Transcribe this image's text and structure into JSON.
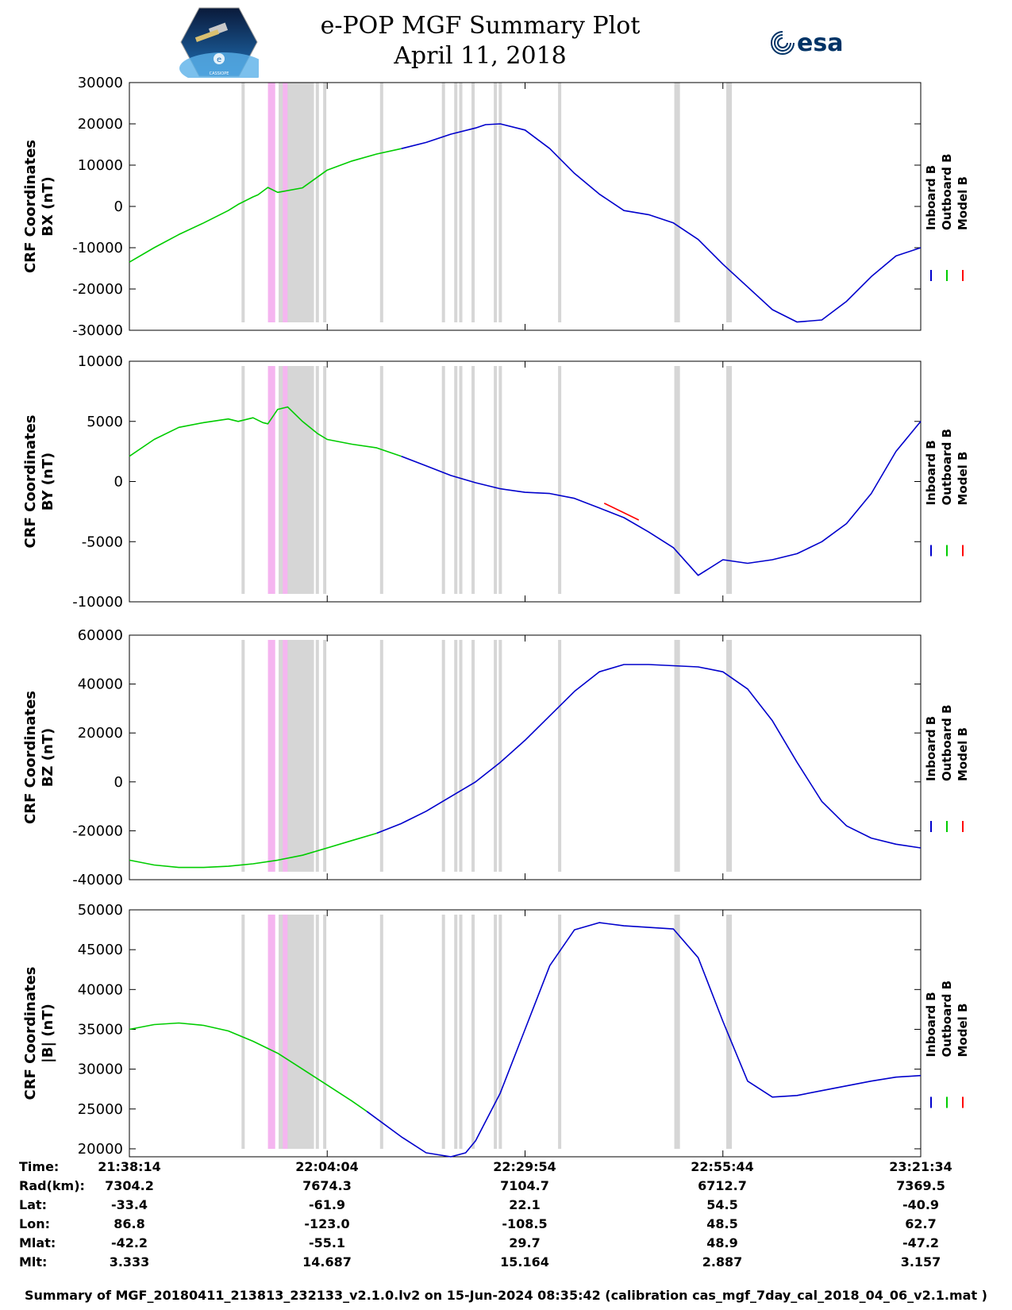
{
  "header": {
    "title": "e-POP MGF Summary Plot",
    "date": "April 11, 2018",
    "left_logo_text": "CASSIOPE",
    "right_logo_text": "esa"
  },
  "colors": {
    "inboard": "#0000cc",
    "outboard": "#00cc00",
    "model": "#ff0000",
    "gray_band": "#d6d6d6",
    "pink_band": "#f5b5f0"
  },
  "chart_data": [
    {
      "type": "line",
      "ylabel_line1": "CRF Coordinates",
      "ylabel_line2": "BX (nT)",
      "ylim": [
        -30000,
        30000
      ],
      "yticks": [
        -30000,
        -20000,
        -10000,
        0,
        10000,
        20000,
        30000
      ],
      "yticklabels": [
        "-30000",
        "-20000",
        "-10000",
        "0",
        "10000",
        "20000",
        "30000"
      ],
      "legend": [
        "Inboard B",
        "Outboard B",
        "Model B"
      ],
      "series": [
        {
          "name": "Outboard B",
          "x": [
            0,
            5,
            10,
            15,
            20,
            22,
            25,
            26,
            28,
            30,
            35,
            40,
            45,
            50,
            55
          ],
          "y": [
            -13500,
            -10000,
            -6800,
            -4000,
            -1000,
            500,
            2300,
            2800,
            4600,
            3400,
            4500,
            8800,
            11000,
            12700,
            14000
          ]
        },
        {
          "name": "Inboard B",
          "x": [
            55,
            60,
            65,
            70,
            72,
            75,
            80,
            85,
            90,
            95,
            100,
            105,
            110,
            115,
            120,
            130,
            135,
            140,
            145,
            150,
            155,
            160
          ],
          "y": [
            14000,
            15500,
            17500,
            19000,
            19800,
            20000,
            18500,
            14000,
            8000,
            3000,
            -1000,
            -2000,
            -4000,
            -8000,
            -14000,
            -25000,
            -28000,
            -27500,
            -23000,
            -17000,
            -12000,
            -10000
          ]
        }
      ]
    },
    {
      "type": "line",
      "ylabel_line1": "CRF Coordinates",
      "ylabel_line2": "BY (nT)",
      "ylim": [
        -10000,
        10000
      ],
      "yticks": [
        -10000,
        -5000,
        0,
        5000,
        10000
      ],
      "yticklabels": [
        "-10000",
        "-5000",
        "0",
        "5000",
        "10000"
      ],
      "legend": [
        "Inboard B",
        "Outboard B",
        "Model B"
      ],
      "series": [
        {
          "name": "Outboard B",
          "x": [
            0,
            5,
            10,
            15,
            20,
            22,
            25,
            27,
            28,
            30,
            32,
            35,
            38,
            40,
            45,
            50,
            55
          ],
          "y": [
            2100,
            3500,
            4500,
            4900,
            5200,
            5000,
            5300,
            4900,
            4800,
            6000,
            6200,
            5000,
            4000,
            3500,
            3100,
            2800,
            2100
          ]
        },
        {
          "name": "Inboard B",
          "x": [
            55,
            60,
            65,
            70,
            75,
            80,
            85,
            90,
            95,
            100,
            105,
            110,
            115,
            120,
            125,
            130,
            135,
            140,
            145,
            150,
            155,
            160
          ],
          "y": [
            2100,
            1300,
            500,
            -100,
            -600,
            -900,
            -1000,
            -1400,
            -2200,
            -3000,
            -4200,
            -5500,
            -7800,
            -6500,
            -6800,
            -6500,
            -6000,
            -5000,
            -3500,
            -1000,
            2500,
            5000
          ]
        },
        {
          "name": "Model B",
          "x": [
            96,
            100,
            103
          ],
          "y": [
            -1800,
            -2600,
            -3200
          ]
        }
      ]
    },
    {
      "type": "line",
      "ylabel_line1": "CRF Coordinates",
      "ylabel_line2": "BZ (nT)",
      "ylim": [
        -40000,
        60000
      ],
      "yticks": [
        -40000,
        -20000,
        0,
        20000,
        40000,
        60000
      ],
      "yticklabels": [
        "-40000",
        "-20000",
        "0",
        "20000",
        "40000",
        "60000"
      ],
      "legend": [
        "Inboard B",
        "Outboard B",
        "Model B"
      ],
      "series": [
        {
          "name": "Outboard B",
          "x": [
            0,
            5,
            10,
            15,
            20,
            25,
            30,
            35,
            40,
            45,
            50
          ],
          "y": [
            -32000,
            -34000,
            -35000,
            -35000,
            -34500,
            -33500,
            -32000,
            -30000,
            -27000,
            -24000,
            -21000
          ]
        },
        {
          "name": "Inboard B",
          "x": [
            50,
            55,
            60,
            65,
            70,
            75,
            80,
            85,
            90,
            95,
            100,
            105,
            110,
            115,
            120,
            125,
            130,
            135,
            140,
            145,
            150,
            155,
            160
          ],
          "y": [
            -21000,
            -17000,
            -12000,
            -6000,
            0,
            8000,
            17000,
            27000,
            37000,
            45000,
            48000,
            48000,
            47500,
            47000,
            45000,
            38000,
            25000,
            8000,
            -8000,
            -18000,
            -23000,
            -25500,
            -27000
          ]
        }
      ]
    },
    {
      "type": "line",
      "ylabel_line1": "CRF Coordinates",
      "ylabel_line2": "|B| (nT)",
      "ylim": [
        19000,
        50000
      ],
      "yticks": [
        20000,
        25000,
        30000,
        35000,
        40000,
        45000,
        50000
      ],
      "yticklabels": [
        "20000",
        "25000",
        "30000",
        "35000",
        "40000",
        "45000",
        "50000"
      ],
      "legend": [
        "Inboard B",
        "Outboard B",
        "Model B"
      ],
      "series": [
        {
          "name": "Outboard B",
          "x": [
            0,
            5,
            10,
            15,
            20,
            25,
            30,
            35,
            40,
            45,
            48
          ],
          "y": [
            35000,
            35600,
            35800,
            35500,
            34800,
            33500,
            32000,
            30000,
            28000,
            26000,
            24700
          ]
        },
        {
          "name": "Inboard B",
          "x": [
            48,
            55,
            60,
            65,
            68,
            70,
            75,
            80,
            85,
            90,
            95,
            100,
            105,
            110,
            115,
            120,
            125,
            130,
            135,
            140,
            145,
            150,
            155,
            160
          ],
          "y": [
            24700,
            21500,
            19500,
            19000,
            19500,
            21000,
            27000,
            35000,
            43000,
            47500,
            48400,
            48000,
            47800,
            47600,
            44000,
            36000,
            28500,
            26500,
            26700,
            27300,
            27900,
            28500,
            29000,
            29200
          ]
        }
      ]
    }
  ],
  "bands": {
    "gray": [
      23,
      30.5,
      31,
      32,
      32.5,
      33,
      33.5,
      34,
      34.5,
      35,
      35.5,
      36,
      36.5,
      37,
      38,
      39.5,
      51,
      63.5,
      66,
      67,
      69.5,
      74,
      75,
      87,
      110.5,
      111,
      121,
      121.5
    ],
    "pink": [
      28.5,
      29,
      31.5
    ]
  },
  "orbit_table": {
    "labels": [
      "Time:",
      "Rad(km):",
      "Lat:",
      "Lon:",
      "Mlat:",
      "Mlt:"
    ],
    "columns": [
      {
        "time": "21:38:14",
        "rad": "7304.2",
        "lat": "-33.4",
        "lon": "86.8",
        "mlat": "-42.2",
        "mlt": "3.333"
      },
      {
        "time": "22:04:04",
        "rad": "7674.3",
        "lat": "-61.9",
        "lon": "-123.0",
        "mlat": "-55.1",
        "mlt": "14.687"
      },
      {
        "time": "22:29:54",
        "rad": "7104.7",
        "lat": "22.1",
        "lon": "-108.5",
        "mlat": "29.7",
        "mlt": "15.164"
      },
      {
        "time": "22:55:44",
        "rad": "6712.7",
        "lat": "54.5",
        "lon": "48.5",
        "mlat": "48.9",
        "mlt": "2.887"
      },
      {
        "time": "23:21:34",
        "rad": "7369.5",
        "lat": "-40.9",
        "lon": "62.7",
        "mlat": "-47.2",
        "mlt": "3.157"
      }
    ]
  },
  "footer": "Summary of MGF_20180411_213813_232133_v2.1.0.lv2 on 15-Jun-2024 08:35:42 (calibration cas_mgf_7day_cal_2018_04_06_v2.1.mat )"
}
